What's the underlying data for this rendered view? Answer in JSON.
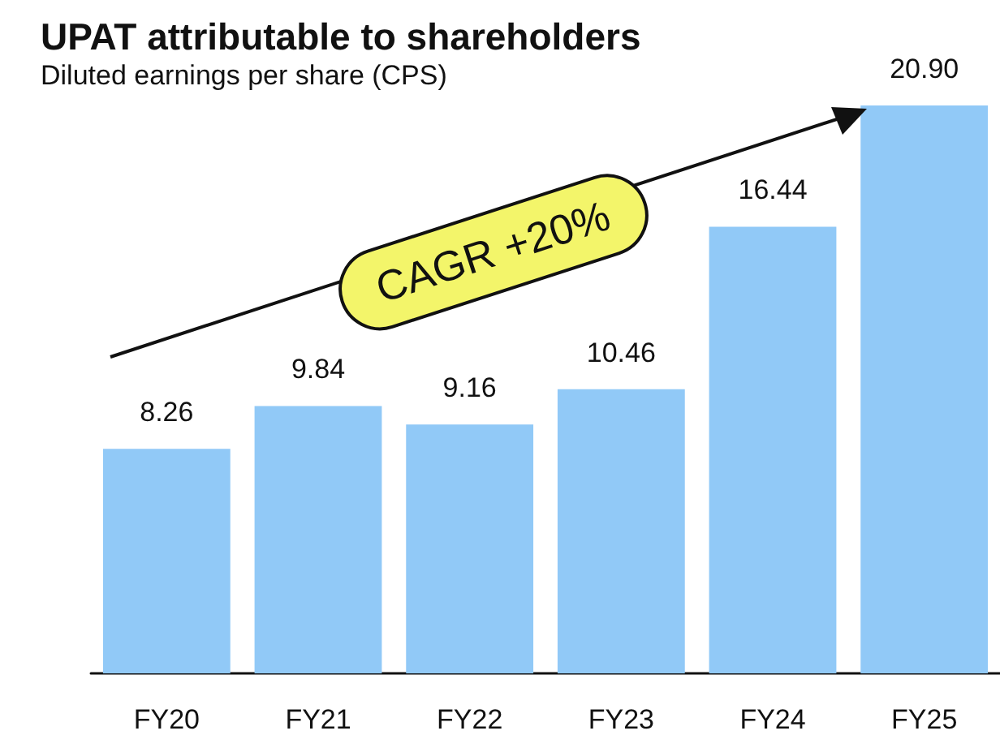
{
  "chart_data": {
    "type": "bar",
    "title": "UPAT attributable to shareholders",
    "subtitle": "Diluted earnings per share (CPS)",
    "categories": [
      "FY20",
      "FY21",
      "FY22",
      "FY23",
      "FY24",
      "FY25"
    ],
    "values": [
      8.26,
      9.84,
      9.16,
      10.46,
      16.44,
      20.9
    ],
    "value_labels": [
      "8.26",
      "9.84",
      "9.16",
      "10.46",
      "16.44",
      "20.90"
    ],
    "color": "#91c9f7",
    "annotations": [
      "CAGR +20%"
    ]
  }
}
